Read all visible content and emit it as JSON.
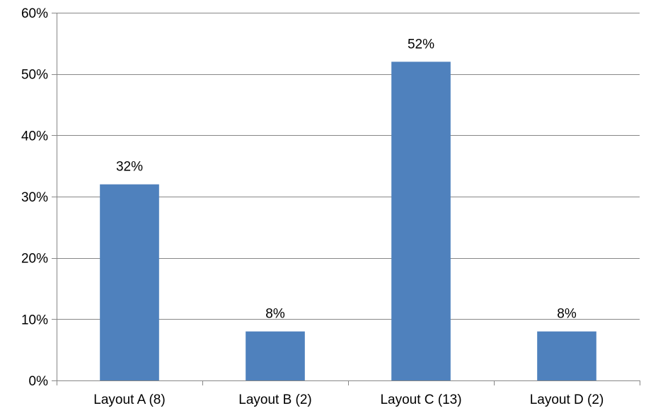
{
  "chart_data": {
    "type": "bar",
    "categories": [
      "Layout A (8)",
      "Layout B (2)",
      "Layout C (13)",
      "Layout D (2)"
    ],
    "values": [
      32,
      8,
      52,
      8
    ],
    "data_labels": [
      "32%",
      "8%",
      "52%",
      "8%"
    ],
    "title": "",
    "xlabel": "",
    "ylabel": "",
    "ylim": [
      0,
      60
    ],
    "yticks": [
      0,
      10,
      20,
      30,
      40,
      50,
      60
    ],
    "ytick_labels": [
      "0%",
      "10%",
      "20%",
      "30%",
      "40%",
      "50%",
      "60%"
    ],
    "grid": true,
    "legend": "none",
    "colors": {
      "bar": "#4F81BD",
      "grid": "#878787",
      "axis": "#878787"
    }
  }
}
